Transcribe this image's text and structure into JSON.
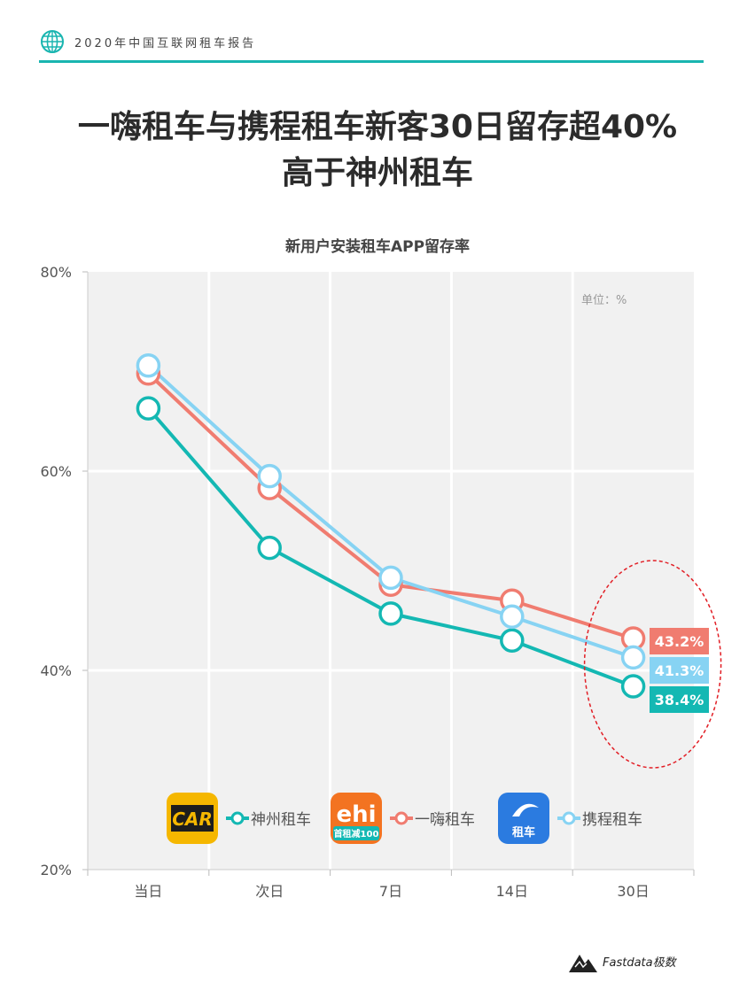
{
  "header": {
    "title": "2020年中国互联网租车报告"
  },
  "headline": {
    "line1": "一嗨租车与携程租车新客30日留存超40%",
    "line2": "高于神州租车"
  },
  "chart_data": {
    "type": "line",
    "title": "新用户安装租车APP留存率",
    "unit_note": "单位：%",
    "categories": [
      "当日",
      "次日",
      "7日",
      "14日",
      "30日"
    ],
    "ylim": [
      20,
      80
    ],
    "yticks": [
      20,
      40,
      60,
      80
    ],
    "ytick_labels": [
      "20%",
      "40%",
      "60%",
      "80%"
    ],
    "grid": true,
    "legend_position": "bottom",
    "series": [
      {
        "name": "神州租车",
        "color": "#14b8b3",
        "values": [
          66.3,
          52.3,
          45.7,
          43.0,
          38.4
        ],
        "end_label": "38.4%"
      },
      {
        "name": "一嗨租车",
        "color": "#f07c70",
        "values": [
          69.8,
          58.3,
          48.6,
          47.0,
          43.2
        ],
        "end_label": "43.2%"
      },
      {
        "name": "携程租车",
        "color": "#87d3f3",
        "values": [
          70.6,
          59.5,
          49.3,
          45.4,
          41.3
        ],
        "end_label": "41.3%"
      }
    ],
    "app_icons": [
      {
        "name": "car-app-icon",
        "label": "CAR",
        "bg": "#f5b700"
      },
      {
        "name": "ehi-app-icon",
        "label": "ehi",
        "sublabel": "首租减100",
        "bg": "#f37321"
      },
      {
        "name": "ctrip-app-icon",
        "label": "租车",
        "bg": "#2b7be0"
      }
    ],
    "highlight_color": "#e21f26"
  },
  "footer": {
    "brand": "Fastdata极数"
  }
}
